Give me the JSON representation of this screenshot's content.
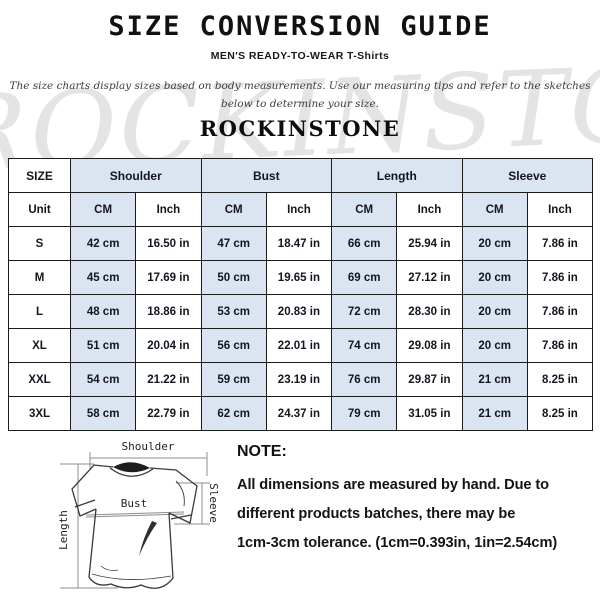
{
  "header": {
    "title": "SIZE CONVERSION GUIDE",
    "subtitle": "MEN'S READY-TO-WEAR T-Shirts",
    "description_line1": "The size charts display sizes based on body measurements. Use our measuring tips and refer to the sketches",
    "description_line2": "below to determine your size.",
    "brand": "ROCKINSTONE",
    "watermark": "ROCKINSTONE"
  },
  "table": {
    "corner_label": "SIZE",
    "unit_label": "Unit",
    "group_headers": [
      "Shoulder",
      "Bust",
      "Length",
      "Sleeve"
    ],
    "unit_headers": [
      "CM",
      "Inch"
    ],
    "rows": [
      [
        "S",
        "42 cm",
        "16.50 in",
        "47 cm",
        "18.47 in",
        "66 cm",
        "25.94 in",
        "20 cm",
        "7.86 in"
      ],
      [
        "M",
        "45 cm",
        "17.69 in",
        "50 cm",
        "19.65 in",
        "69 cm",
        "27.12 in",
        "20 cm",
        "7.86 in"
      ],
      [
        "L",
        "48 cm",
        "18.86 in",
        "53 cm",
        "20.83 in",
        "72 cm",
        "28.30 in",
        "20 cm",
        "7.86 in"
      ],
      [
        "XL",
        "51 cm",
        "20.04 in",
        "56 cm",
        "22.01 in",
        "74 cm",
        "29.08 in",
        "20 cm",
        "7.86 in"
      ],
      [
        "XXL",
        "54 cm",
        "21.22 in",
        "59 cm",
        "23.19 in",
        "76 cm",
        "29.87 in",
        "21 cm",
        "8.25 in"
      ],
      [
        "3XL",
        "58 cm",
        "22.79 in",
        "62 cm",
        "24.37 in",
        "79 cm",
        "31.05 in",
        "21 cm",
        "8.25 in"
      ]
    ],
    "colors": {
      "header_bg": "#dbe5f1",
      "inch_bg": "#ffffff",
      "border_col": "#1c1c1c",
      "text_col": "#15151f"
    }
  },
  "diagram": {
    "shoulder_label": "Shoulder",
    "bust_label": "Bust",
    "length_label": "Length",
    "sleeve_label": "Sleeve"
  },
  "note": {
    "heading": "NOTE:",
    "line1": "All dimensions are measured by hand. Due to",
    "line2": "different products batches, there may be",
    "line3": "1cm-3cm tolerance. (1cm=0.393in, 1in=2.54cm)"
  }
}
